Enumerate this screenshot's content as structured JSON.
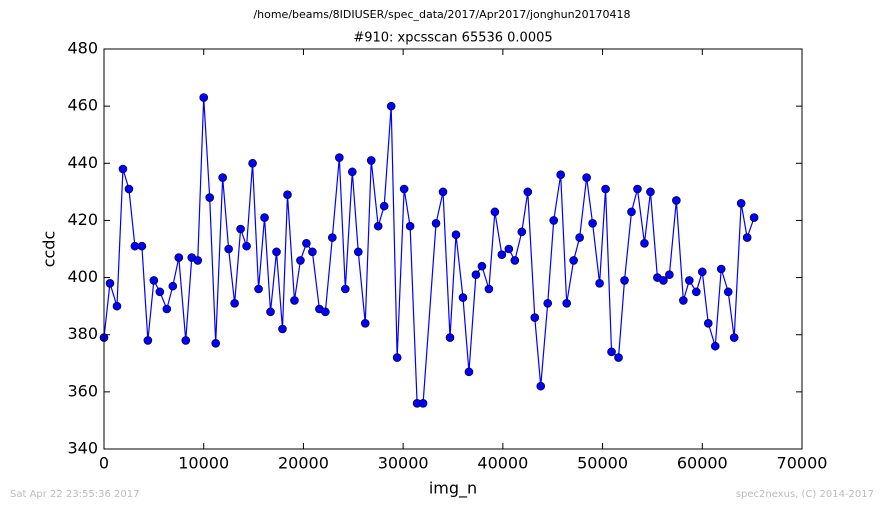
{
  "chart_data": {
    "type": "line",
    "suptitle": "/home/beams/8IDIUSER/spec_data/2017/Apr2017/jonghun20170418",
    "title": "#910: xpcsscan 65536 0.0005",
    "xlabel": "img_n",
    "ylabel": "ccdc",
    "footer_left": "Sat Apr 22 23:55:36 2017",
    "footer_right": "spec2nexus, (C) 2014-2017",
    "xlim": [
      0,
      70000
    ],
    "xticks": [
      0,
      10000,
      20000,
      30000,
      40000,
      50000,
      60000,
      70000
    ],
    "ylim": [
      340,
      480
    ],
    "yticks": [
      340,
      360,
      380,
      400,
      420,
      440,
      460,
      480
    ],
    "x": [
      0,
      600,
      1300,
      1900,
      2500,
      3100,
      3800,
      4400,
      5000,
      5600,
      6300,
      6900,
      7500,
      8200,
      8800,
      9400,
      10000,
      10600,
      11200,
      11900,
      12500,
      13100,
      13700,
      14300,
      14900,
      15500,
      16100,
      16700,
      17300,
      17900,
      18400,
      19100,
      19700,
      20300,
      20900,
      21600,
      22200,
      22900,
      23600,
      24200,
      24900,
      25500,
      26200,
      26800,
      27500,
      28100,
      28800,
      29400,
      30100,
      30700,
      31400,
      32000,
      33300,
      34000,
      34700,
      35300,
      36000,
      36600,
      37300,
      37900,
      38600,
      39200,
      39900,
      40600,
      41200,
      41900,
      42500,
      43200,
      43800,
      44500,
      45100,
      45800,
      46400,
      47100,
      47700,
      48400,
      49000,
      49700,
      50300,
      50900,
      51600,
      52200,
      52900,
      53500,
      54200,
      54800,
      55500,
      56100,
      56700,
      57400,
      58100,
      58700,
      59400,
      60000,
      60600,
      61300,
      61900,
      62600,
      63200,
      63900,
      64500,
      65200
    ],
    "series": [
      {
        "name": "ccdc",
        "color": "#0000ff",
        "values": [
          379,
          398,
          390,
          438,
          431,
          411,
          411,
          378,
          399,
          395,
          389,
          397,
          407,
          378,
          407,
          406,
          463,
          428,
          377,
          435,
          410,
          391,
          417,
          411,
          440,
          396,
          421,
          388,
          409,
          382,
          429,
          392,
          406,
          412,
          409,
          389,
          388,
          414,
          442,
          396,
          437,
          409,
          384,
          441,
          418,
          425,
          460,
          372,
          431,
          418,
          356,
          356,
          419,
          430,
          379,
          415,
          393,
          367,
          401,
          404,
          396,
          423,
          408,
          410,
          406,
          416,
          430,
          386,
          362,
          391,
          420,
          436,
          391,
          406,
          414,
          435,
          419,
          398,
          431,
          374,
          372,
          399,
          423,
          431,
          412,
          430,
          400,
          399,
          401,
          427,
          392,
          399,
          395,
          402,
          384,
          376,
          403,
          395,
          379,
          426,
          414,
          421
        ]
      }
    ]
  }
}
